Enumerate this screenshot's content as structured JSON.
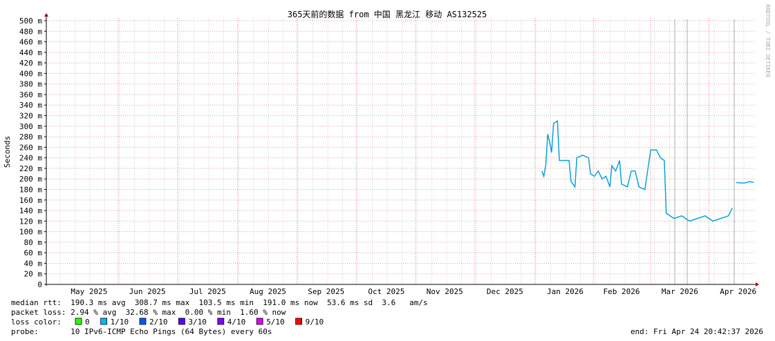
{
  "chart_data": {
    "type": "line",
    "title": "365天前的数据 from 中国 黑龙江 移动 AS132525",
    "y_label": "Seconds",
    "watermark": "RRDTOOL / TOBI OETIKER",
    "xlim": [
      -365,
      0
    ],
    "xticks": [
      {
        "value": -343,
        "label": "May 2025"
      },
      {
        "value": -313,
        "label": "Jun 2025"
      },
      {
        "value": -282,
        "label": "Jul 2025"
      },
      {
        "value": -251,
        "label": "Aug 2025"
      },
      {
        "value": -221,
        "label": "Sep 2025"
      },
      {
        "value": -190,
        "label": "Oct 2025"
      },
      {
        "value": -160,
        "label": "Nov 2025"
      },
      {
        "value": -129,
        "label": "Dec 2025"
      },
      {
        "value": -98,
        "label": "Jan 2026"
      },
      {
        "value": -69,
        "label": "Feb 2026"
      },
      {
        "value": -39,
        "label": "Mar 2026"
      },
      {
        "value": -9,
        "label": "Apr 2026"
      }
    ],
    "ylim": [
      0,
      0.5
    ],
    "yticks": [
      {
        "value": 0,
        "label": "0"
      },
      {
        "value": 0.02,
        "label": "20 m"
      },
      {
        "value": 0.04,
        "label": "40 m"
      },
      {
        "value": 0.06,
        "label": "60 m"
      },
      {
        "value": 0.08,
        "label": "80 m"
      },
      {
        "value": 0.1,
        "label": "100 m"
      },
      {
        "value": 0.12,
        "label": "120 m"
      },
      {
        "value": 0.14,
        "label": "140 m"
      },
      {
        "value": 0.16,
        "label": "160 m"
      },
      {
        "value": 0.18,
        "label": "180 m"
      },
      {
        "value": 0.2,
        "label": "200 m"
      },
      {
        "value": 0.22,
        "label": "220 m"
      },
      {
        "value": 0.24,
        "label": "240 m"
      },
      {
        "value": 0.26,
        "label": "260 m"
      },
      {
        "value": 0.28,
        "label": "280 m"
      },
      {
        "value": 0.3,
        "label": "300 m"
      },
      {
        "value": 0.32,
        "label": "320 m"
      },
      {
        "value": 0.34,
        "label": "340 m"
      },
      {
        "value": 0.36,
        "label": "360 m"
      },
      {
        "value": 0.38,
        "label": "380 m"
      },
      {
        "value": 0.4,
        "label": "400 m"
      },
      {
        "value": 0.42,
        "label": "420 m"
      },
      {
        "value": 0.44,
        "label": "440 m"
      },
      {
        "value": 0.46,
        "label": "460 m"
      },
      {
        "value": 0.48,
        "label": "480 m"
      },
      {
        "value": 0.5,
        "label": "500 m"
      }
    ],
    "grid": true,
    "x": [
      -110,
      -109,
      -108,
      -107,
      -106,
      -105,
      -104,
      -102,
      -101,
      -98,
      -96,
      -95,
      -93,
      -92,
      -89,
      -86,
      -85,
      -83,
      -81,
      -79,
      -77,
      -75,
      -74,
      -72,
      -70,
      -69,
      -66,
      -64,
      -62,
      -60,
      -57,
      -54,
      -51,
      -49,
      -47,
      -46,
      -42,
      -38,
      -34,
      -30,
      -26,
      -22,
      -18,
      -14,
      -12,
      -11,
      -10,
      -6,
      -3,
      -1
    ],
    "series": [
      {
        "name": "median rtt",
        "color": "#0aa0d8",
        "values": [
          0.215,
          0.205,
          0.225,
          0.285,
          0.27,
          0.25,
          0.305,
          0.31,
          0.235,
          0.235,
          0.235,
          0.195,
          0.185,
          0.24,
          0.245,
          0.24,
          0.21,
          0.205,
          0.215,
          0.2,
          0.205,
          0.185,
          0.225,
          0.215,
          0.235,
          0.19,
          0.185,
          0.215,
          0.215,
          0.185,
          0.18,
          0.255,
          0.255,
          0.24,
          0.235,
          0.135,
          0.125,
          0.13,
          0.12,
          0.125,
          0.13,
          0.12,
          0.125,
          0.13,
          0.145,
          null,
          0.193,
          0.192,
          0.195,
          0.193
        ]
      }
    ],
    "stats": [
      "median rtt:  190.3 ms avg  308.7 ms max  103.5 ms min  191.0 ms now  53.6 ms sd  3.6   am/s",
      "packet loss: 2.94 % avg  32.68 % max  0.00 % min  1.60 % now"
    ],
    "loss_color_label": "loss color:",
    "loss_colors": [
      {
        "label": "0",
        "color": "#26ff00"
      },
      {
        "label": "1/10",
        "color": "#00b8ff"
      },
      {
        "label": "2/10",
        "color": "#0059ff"
      },
      {
        "label": "3/10",
        "color": "#5e00ff"
      },
      {
        "label": "4/10",
        "color": "#7e00ff"
      },
      {
        "label": "5/10",
        "color": "#dd00ff"
      },
      {
        "label": "9/10",
        "color": "#ff0000"
      }
    ],
    "probe": "probe:       10 IPv6-ICMP Echo Pings (64 Bytes) every 60s",
    "end": "end: Fri Apr 24 20:42:37 2026"
  }
}
